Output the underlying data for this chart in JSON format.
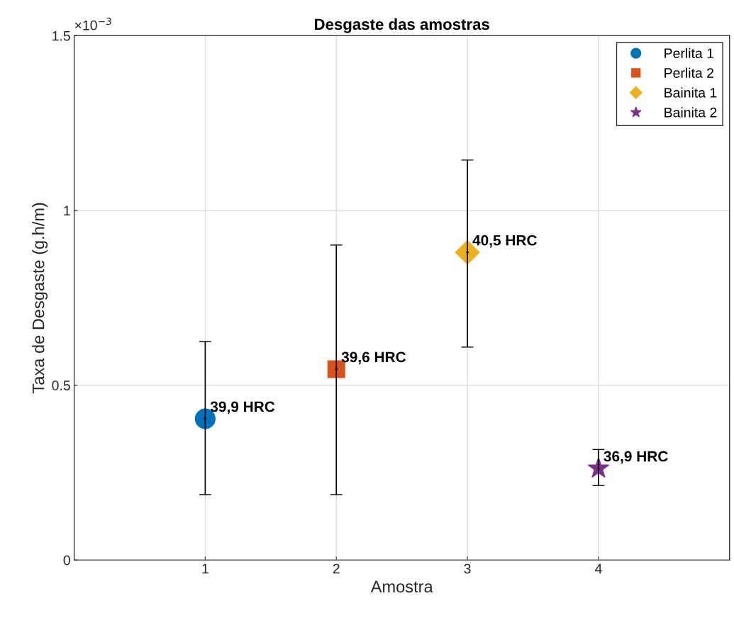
{
  "chart_data": {
    "type": "scatter",
    "title": "Desgaste das amostras",
    "xlabel": "Amostra",
    "ylabel": "Taxa de Desgaste (g.h/m)",
    "series": [
      {
        "name": "Perlita 1",
        "color": "#0072bd",
        "marker": "circle",
        "x": [
          1
        ],
        "values": [
          0.404
        ],
        "errors": [
          [
            0.187,
            0.625
          ]
        ]
      },
      {
        "name": "Perlita 2",
        "color": "#d95319",
        "marker": "square",
        "x": [
          2
        ],
        "values": [
          0.546
        ],
        "errors": [
          [
            0.187,
            0.901
          ]
        ]
      },
      {
        "name": "Bainita 1",
        "color": "#edb120",
        "marker": "diamond",
        "x": [
          3
        ],
        "values": [
          0.88
        ],
        "errors": [
          [
            0.609,
            1.144
          ]
        ]
      },
      {
        "name": "Bainita 2",
        "color": "#7e2f8e",
        "marker": "star",
        "x": [
          4
        ],
        "values": [
          0.262
        ],
        "errors": [
          [
            0.213,
            0.316
          ]
        ]
      }
    ],
    "annotations": [
      {
        "text": "39,9 HRC",
        "x": 1,
        "y": 0.404
      },
      {
        "text": "39,6 HRC",
        "x": 2,
        "y": 0.546
      },
      {
        "text": "40,5 HRC",
        "x": 3,
        "y": 0.88
      },
      {
        "text": "36,9 HRC",
        "x": 4,
        "y": 0.262
      },
      "×10$^{−3}$"
    ],
    "xlim": [
      0,
      5
    ],
    "xticks": [
      1,
      2,
      3,
      4
    ],
    "ylim": [
      0,
      1.5
    ],
    "yticks": [
      0,
      0.5,
      1,
      1.5
    ],
    "grid": true,
    "legend": "top right"
  }
}
